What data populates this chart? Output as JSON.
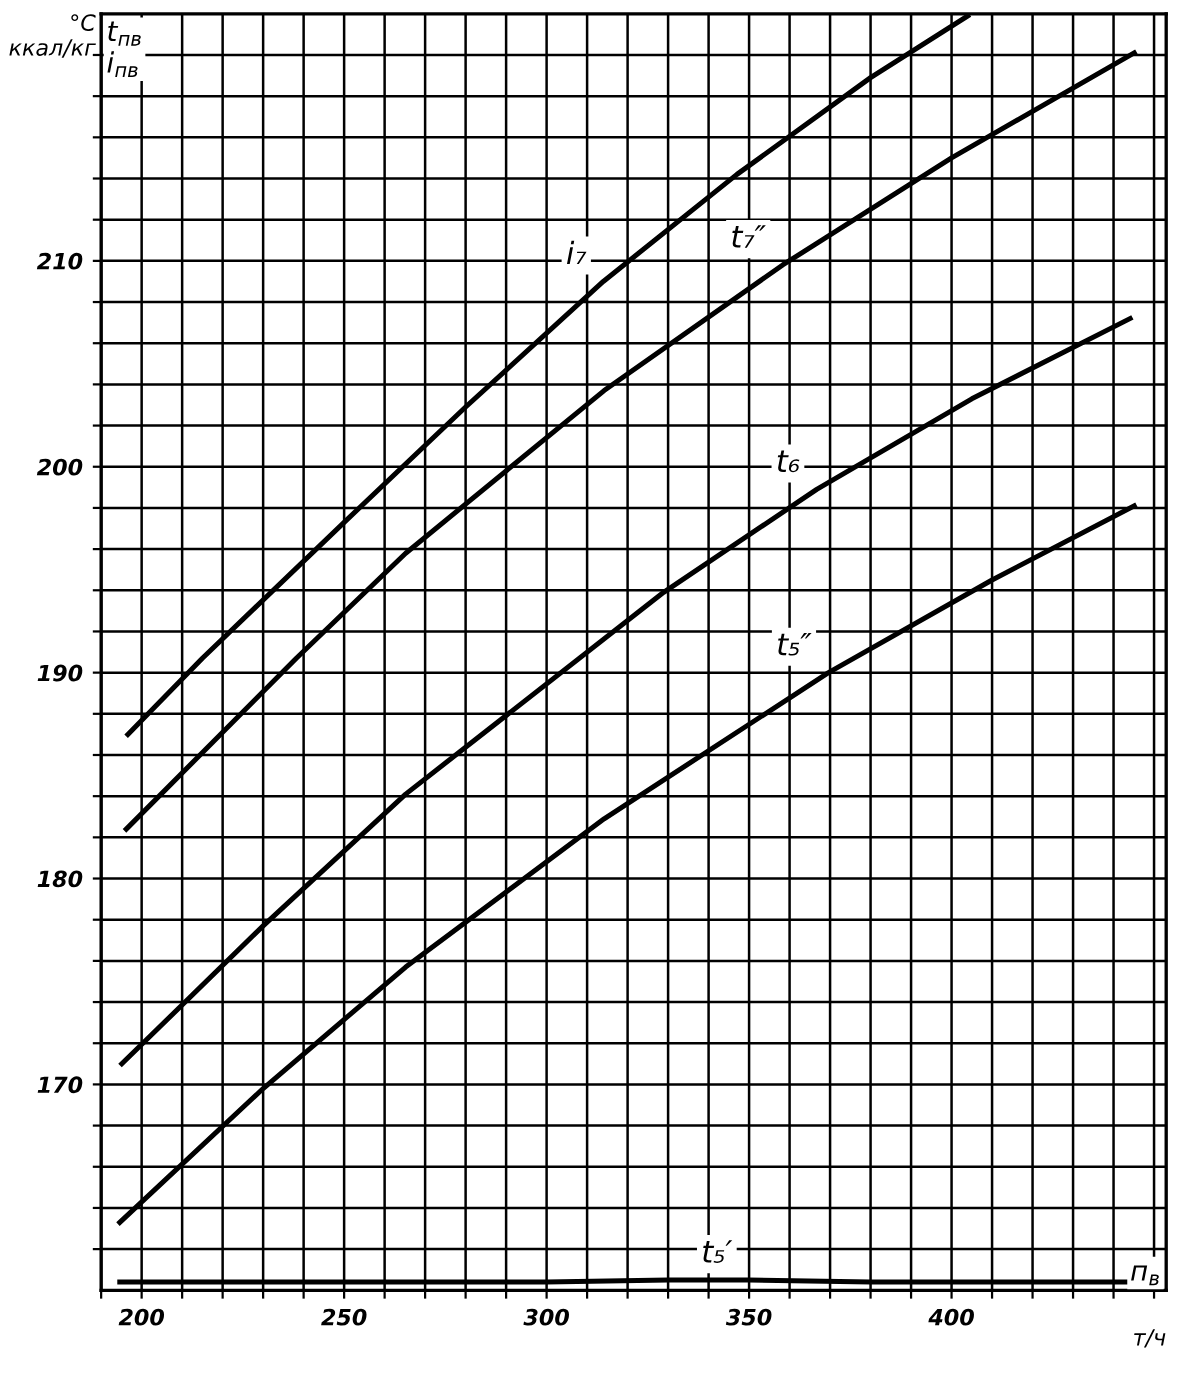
{
  "chart_data": {
    "type": "line",
    "ylabel": "°C\nккал/кг",
    "xlabel": "т/ч",
    "annotations": [
      "t$_{пв}$\ni$_{пв}$",
      "п$_{в}$"
    ],
    "xlim": [
      190,
      453
    ],
    "ylim": [
      160,
      222
    ],
    "xticks": [
      {
        "value": 190,
        "label": null
      },
      200,
      {
        "value": 210,
        "label": null
      },
      {
        "value": 220,
        "label": null
      },
      {
        "value": 230,
        "label": null
      },
      {
        "value": 240,
        "label": null
      },
      250,
      {
        "value": 260,
        "label": null
      },
      {
        "value": 270,
        "label": null
      },
      {
        "value": 280,
        "label": null
      },
      {
        "value": 290,
        "label": null
      },
      300,
      {
        "value": 310,
        "label": null
      },
      {
        "value": 320,
        "label": null
      },
      {
        "value": 330,
        "label": null
      },
      {
        "value": 340,
        "label": null
      },
      350,
      {
        "value": 360,
        "label": null
      },
      {
        "value": 370,
        "label": null
      },
      {
        "value": 380,
        "label": null
      },
      {
        "value": 390,
        "label": null
      },
      400,
      {
        "value": 410,
        "label": null
      },
      {
        "value": 420,
        "label": null
      },
      {
        "value": 430,
        "label": null
      },
      {
        "value": 440,
        "label": null
      },
      {
        "value": 450,
        "label": null
      }
    ],
    "yticks": [
      {
        "value": 162,
        "label": null
      },
      {
        "value": 164,
        "label": null
      },
      {
        "value": 166,
        "label": null
      },
      {
        "value": 168,
        "label": null
      },
      170,
      {
        "value": 172,
        "label": null
      },
      {
        "value": 174,
        "label": null
      },
      {
        "value": 176,
        "label": null
      },
      {
        "value": 178,
        "label": null
      },
      180,
      {
        "value": 182,
        "label": null
      },
      {
        "value": 184,
        "label": null
      },
      {
        "value": 186,
        "label": null
      },
      {
        "value": 188,
        "label": null
      },
      190,
      {
        "value": 192,
        "label": null
      },
      {
        "value": 194,
        "label": null
      },
      {
        "value": 196,
        "label": null
      },
      {
        "value": 198,
        "label": null
      },
      200,
      {
        "value": 202,
        "label": null
      },
      {
        "value": 204,
        "label": null
      },
      {
        "value": 206,
        "label": null
      },
      {
        "value": 208,
        "label": null
      },
      210,
      {
        "value": 212,
        "label": null
      },
      {
        "value": 214,
        "label": null
      },
      {
        "value": 216,
        "label": null
      },
      {
        "value": 218,
        "label": null
      },
      {
        "value": 220,
        "label": null
      }
    ],
    "grid": true,
    "legend": false,
    "marker": "none",
    "line_style": "solid",
    "series": [
      {
        "name": "i₇",
        "color": "#000000",
        "x": [
          196.6,
          215,
          250,
          280,
          314,
          347,
          380,
          404
        ],
        "values": [
          187.0,
          190.7,
          197.3,
          202.9,
          209.0,
          214.2,
          218.9,
          221.9
        ]
      },
      {
        "name": "t₇″",
        "color": "#000000",
        "x": [
          196.2,
          238.2,
          265.2,
          314.2,
          358.3,
          400,
          445.1
        ],
        "values": [
          182.4,
          190.7,
          195.8,
          203.7,
          209.8,
          215.0,
          220.1
        ]
      },
      {
        "name": "t₆",
        "color": "#000000",
        "x": [
          195.1,
          230,
          265.2,
          328.9,
          366.7,
          405,
          444.1
        ],
        "values": [
          171.0,
          177.7,
          184.1,
          193.9,
          198.9,
          203.3,
          207.2
        ]
      },
      {
        "name": "t₅″",
        "color": "#000000",
        "x": [
          194.6,
          230,
          265.2,
          314.2,
          369.6,
          410,
          445.1
        ],
        "values": [
          163.3,
          169.8,
          175.7,
          182.9,
          190.0,
          194.5,
          198.1
        ]
      },
      {
        "name": "t₅′",
        "color": "#000000",
        "x": [
          194.6,
          300,
          330,
          350,
          380,
          444
        ],
        "values": [
          160.4,
          160.4,
          160.5,
          160.5,
          160.4,
          160.4
        ]
      }
    ]
  }
}
